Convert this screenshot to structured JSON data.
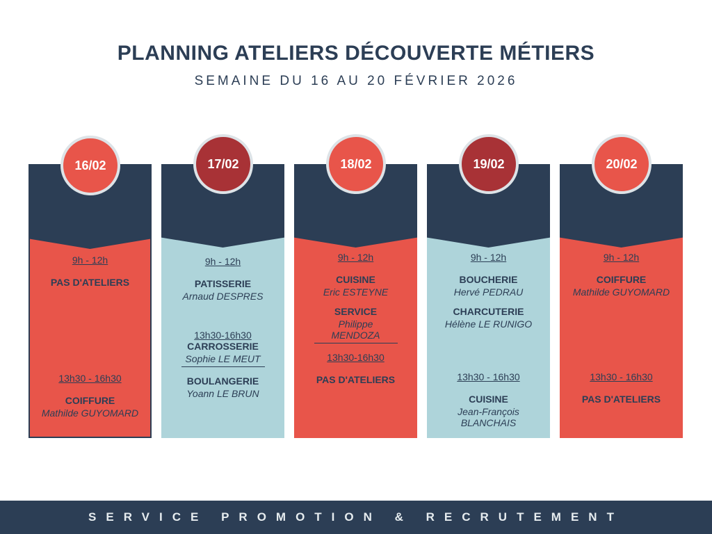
{
  "header": {
    "title": "PLANNING ATELIERS DÉCOUVERTE MÉTIERS",
    "subtitle": "SEMAINE DU 16 AU 20 FÉVRIER 2026"
  },
  "days": [
    {
      "date": "16/02",
      "slots": [
        {
          "time": "9h - 12h",
          "workshops": [
            {
              "name": "PAS D'ATELIERS"
            }
          ]
        },
        {
          "time": "13h30 - 16h30",
          "workshops": [
            {
              "name": "COIFFURE",
              "person": "Mathilde GUYOMARD"
            }
          ]
        }
      ]
    },
    {
      "date": "17/02",
      "slots": [
        {
          "time": "9h - 12h",
          "workshops": [
            {
              "name": "PATISSERIE",
              "person": "Arnaud DESPRES"
            }
          ]
        },
        {
          "time": "13h30-16h30",
          "workshops": [
            {
              "name": "CARROSSERIE",
              "person": "Sophie LE MEUT"
            },
            {
              "name": "BOULANGERIE",
              "person": "Yoann LE BRUN"
            }
          ]
        }
      ]
    },
    {
      "date": "18/02",
      "slots": [
        {
          "time": "9h - 12h",
          "workshops": [
            {
              "name": "CUISINE",
              "person": "Eric ESTEYNE"
            },
            {
              "name": "SERVICE",
              "person": "Philippe MENDOZA"
            }
          ]
        },
        {
          "time": "13h30-16h30",
          "workshops": [
            {
              "name": "PAS D'ATELIERS"
            }
          ]
        }
      ]
    },
    {
      "date": "19/02",
      "slots": [
        {
          "time": "9h - 12h",
          "workshops": [
            {
              "name": "BOUCHERIE",
              "person": "Hervé PEDRAU"
            },
            {
              "name": "CHARCUTERIE",
              "person": "Hélène LE RUNIGO"
            }
          ]
        },
        {
          "time": "13h30 - 16h30",
          "workshops": [
            {
              "name": "CUISINE",
              "person": "Jean-François BLANCHAIS"
            }
          ]
        }
      ]
    },
    {
      "date": "20/02",
      "slots": [
        {
          "time": "9h - 12h",
          "workshops": [
            {
              "name": "COIFFURE",
              "person": "Mathilde GUYOMARD"
            }
          ]
        },
        {
          "time": "13h30 - 16h30",
          "workshops": [
            {
              "name": "PAS D'ATELIERS"
            }
          ]
        }
      ]
    }
  ],
  "footer": "SERVICE PROMOTION & RECRUTEMENT"
}
